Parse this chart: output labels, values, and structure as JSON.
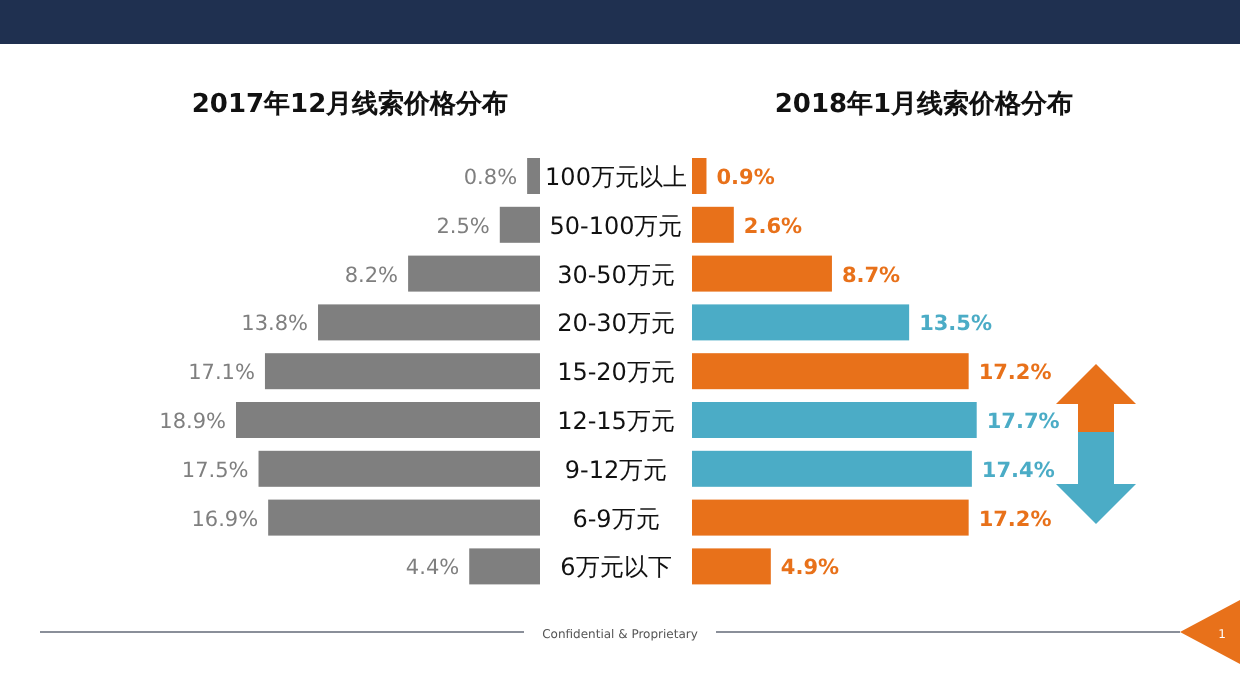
{
  "chart_data": [
    {
      "type": "bar",
      "orientation": "horizontal",
      "title": "2017年12月线索价格分布",
      "categories": [
        "100万元以上",
        "50-100万元",
        "30-50万元",
        "20-30万元",
        "15-20万元",
        "12-15万元",
        "9-12万元",
        "6-9万元",
        "6万元以下"
      ],
      "values": [
        0.8,
        2.5,
        8.2,
        13.8,
        17.1,
        18.9,
        17.5,
        16.9,
        4.4
      ],
      "color": "#7f7f7f",
      "data_labels": true,
      "value_labels": [
        "0.8%",
        "2.5%",
        "8.2%",
        "13.8%",
        "17.1%",
        "18.9%",
        "17.5%",
        "16.9%",
        "4.4%"
      ]
    },
    {
      "type": "bar",
      "orientation": "horizontal",
      "title": "2018年1月线索价格分布",
      "values": [
        0.9,
        2.6,
        8.7,
        13.5,
        17.2,
        17.7,
        17.4,
        17.2,
        4.9
      ],
      "colors": [
        "#e8711a",
        "#e8711a",
        "#e8711a",
        "#4bacc6",
        "#e8711a",
        "#4bacc6",
        "#4bacc6",
        "#e8711a",
        "#e8711a"
      ],
      "data_labels": true,
      "value_labels": [
        "0.9%",
        "2.6%",
        "8.7%",
        "13.5%",
        "17.2%",
        "17.7%",
        "17.4%",
        "17.2%",
        "4.9%"
      ],
      "annotations": [
        "Confidential & Proprietary",
        "1"
      ]
    }
  ]
}
